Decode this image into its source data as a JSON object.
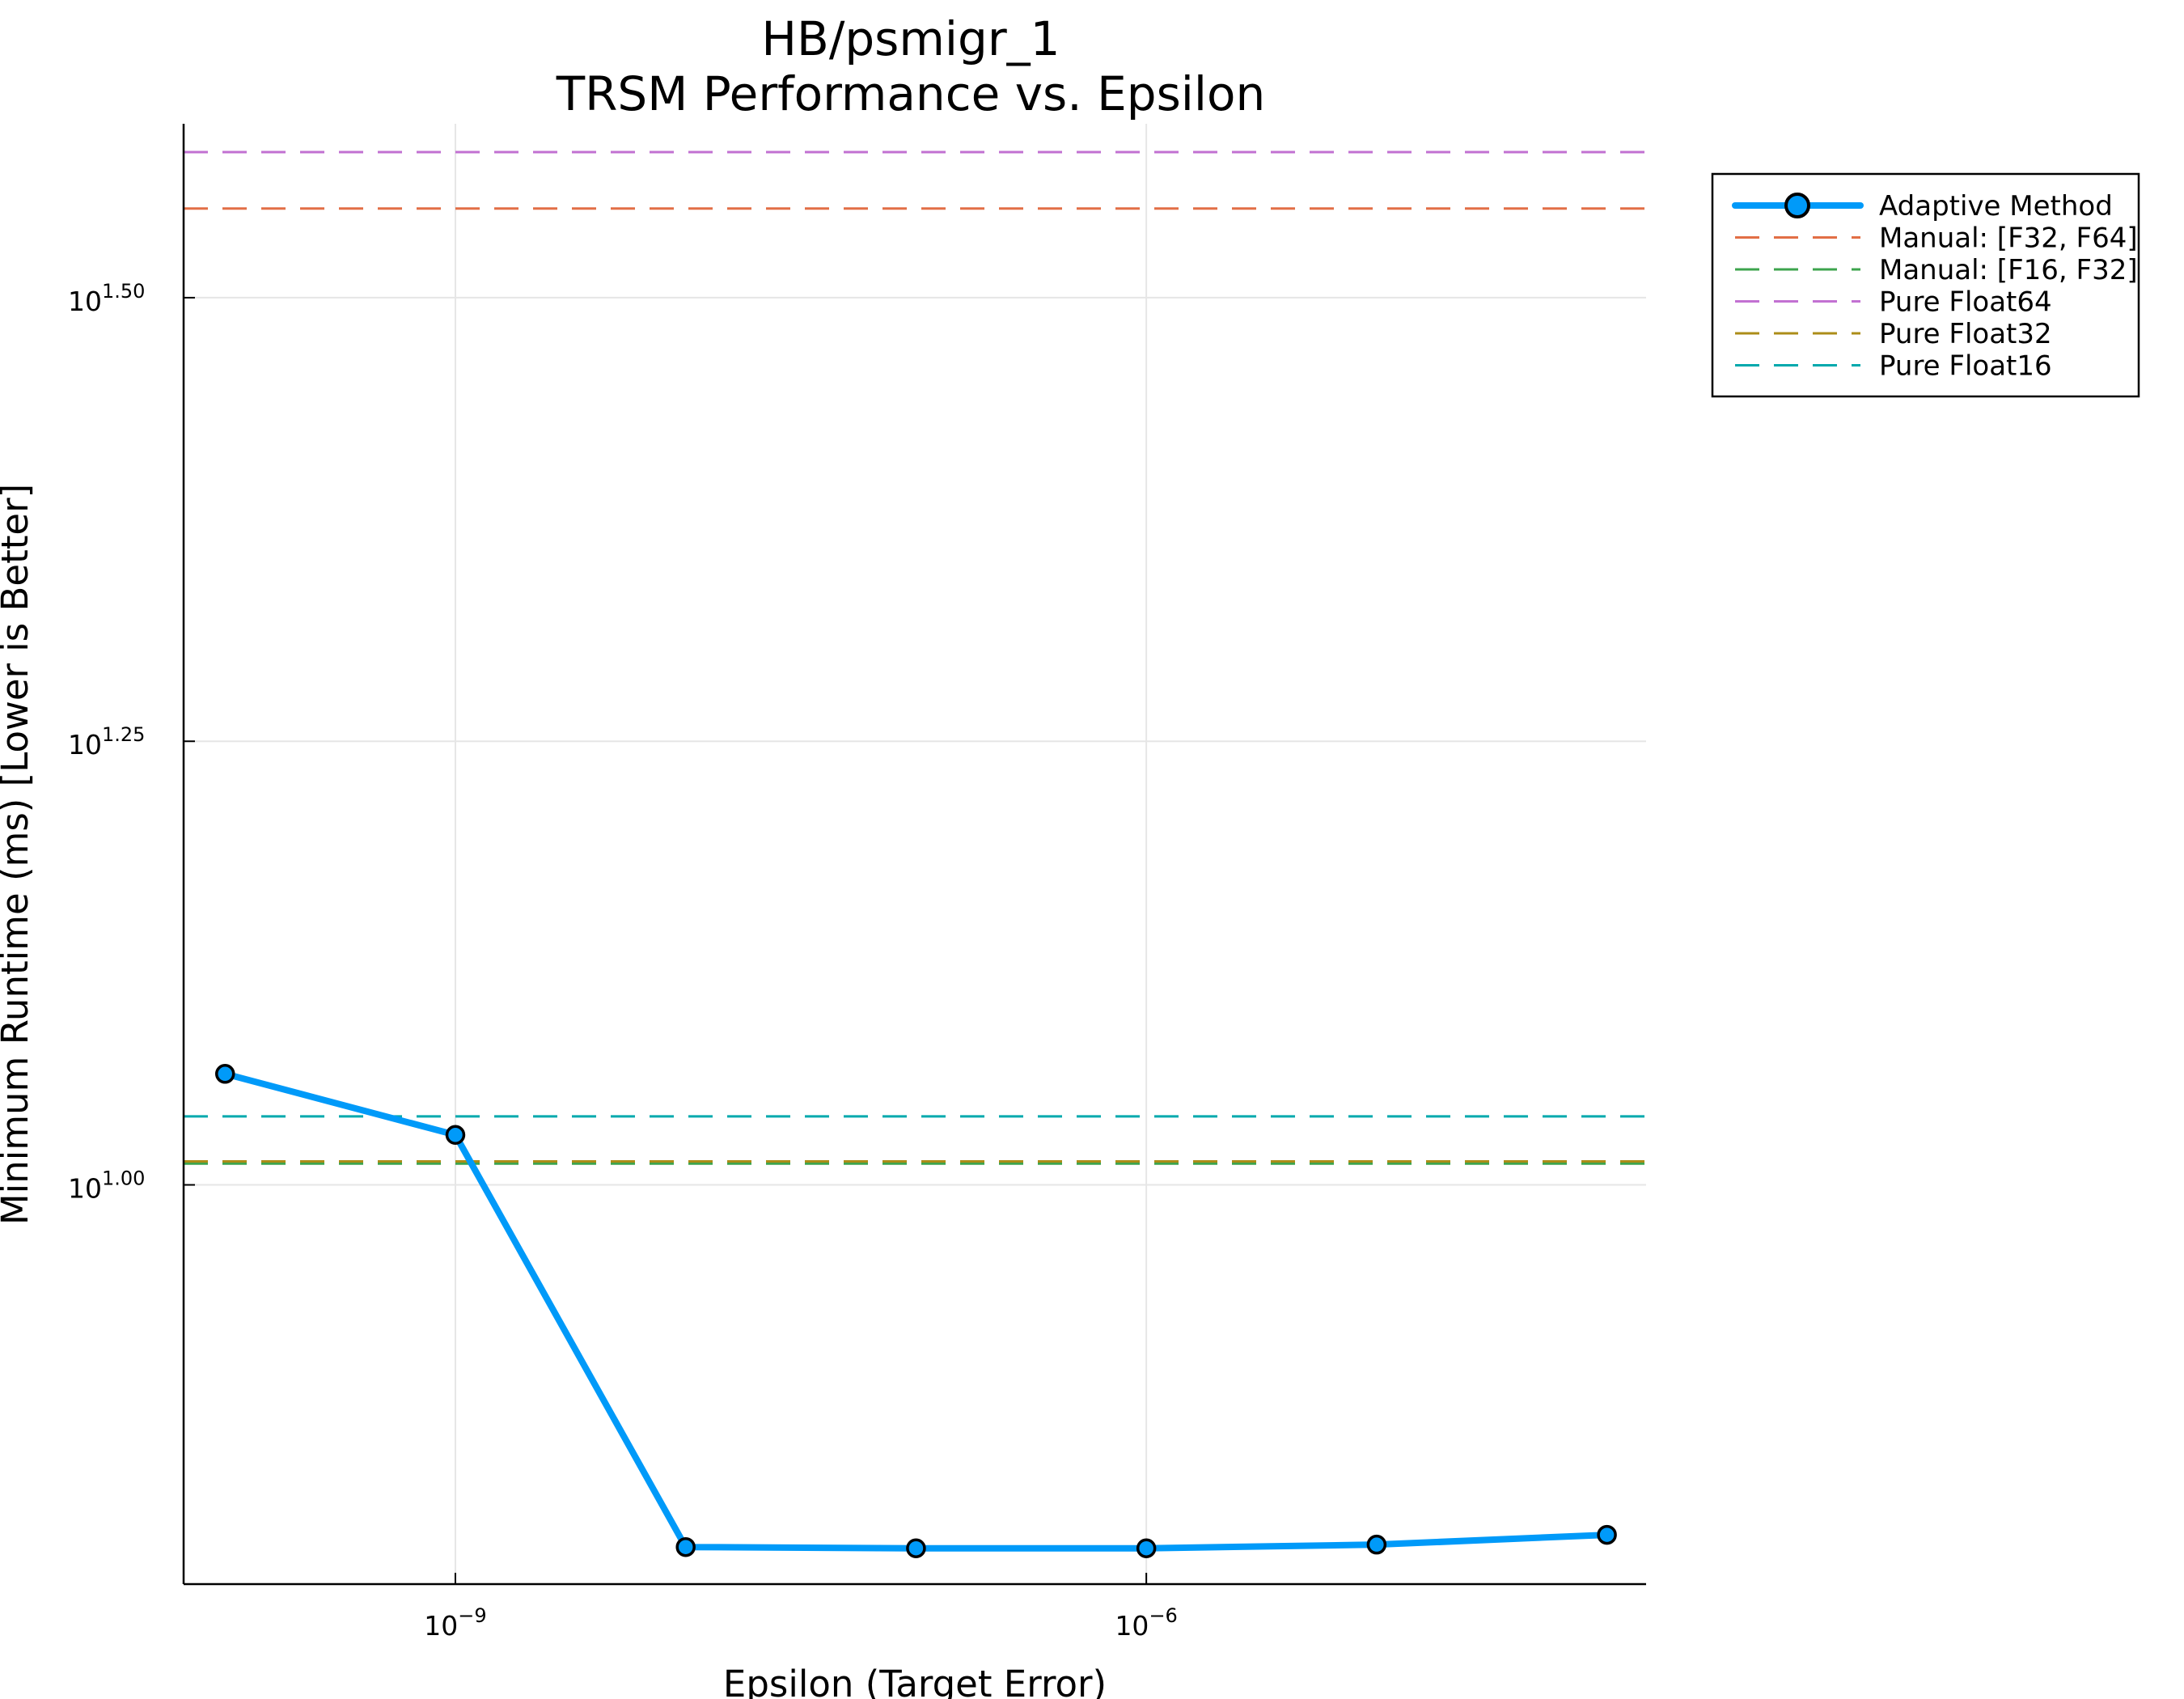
{
  "chart_data": {
    "type": "line",
    "title_lines": [
      "HB/psmigr_1",
      "TRSM Performance vs. Epsilon"
    ],
    "xlabel": "Epsilon (Target Error)",
    "ylabel": "Minimum Runtime (ms) [Lower is Better]",
    "x_scale": "log10",
    "y_scale": "log10",
    "xlim_log10": [
      -10.18,
      -3.83
    ],
    "ylim_log10": [
      0.775,
      1.598
    ],
    "x_ticks": [
      {
        "value_log10": -9,
        "base": "10",
        "exp": "−9"
      },
      {
        "value_log10": -6,
        "base": "10",
        "exp": "−6"
      }
    ],
    "y_ticks": [
      {
        "value_log10": 1.0,
        "base": "10",
        "exp": "1.00"
      },
      {
        "value_log10": 1.25,
        "base": "10",
        "exp": "1.25"
      },
      {
        "value_log10": 1.5,
        "base": "10",
        "exp": "1.50"
      }
    ],
    "grid": true,
    "legend_position": "top-right, outside plot area",
    "series": [
      {
        "name": "Adaptive Method",
        "style": "solid-line-with-markers",
        "color": "#009af9",
        "x_log10": [
          -10,
          -9,
          -8,
          -7,
          -6,
          -5,
          -4
        ],
        "y_ms": [
          11.55,
          10.67,
          6.25,
          6.24,
          6.24,
          6.27,
          6.35
        ]
      },
      {
        "name": "Manual: [F32, F64]",
        "style": "dashed",
        "color": "#e26f46",
        "y_ms": 35.5
      },
      {
        "name": "Manual: [F16, F32]",
        "style": "dashed",
        "color": "#3da44d",
        "y_ms": 10.28
      },
      {
        "name": "Pure Float64",
        "style": "dashed",
        "color": "#c271d2",
        "y_ms": 38.2
      },
      {
        "name": "Pure Float32",
        "style": "dashed",
        "color": "#ac8d18",
        "y_ms": 10.31
      },
      {
        "name": "Pure Float16",
        "style": "dashed",
        "color": "#00a9ad",
        "y_ms": 10.93
      }
    ]
  }
}
